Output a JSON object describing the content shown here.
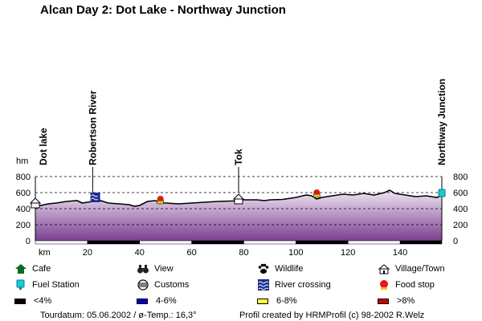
{
  "title": "Alcan Day 2: Dot Lake - Northway Junction",
  "axis": {
    "y_unit_left": "hm",
    "x_unit": "km"
  },
  "waypoints": [
    {
      "name": "Dot lake",
      "km": 0
    },
    {
      "name": "Robertson River",
      "km": 22
    },
    {
      "name": "Tok",
      "km": 78
    },
    {
      "name": "Northway Junction",
      "km": 156
    }
  ],
  "legend": {
    "cafe": "Cafe",
    "view": "View",
    "wildlife": "Wildlife",
    "village": "Village/Town",
    "fuel": "Fuel Station",
    "customs": "Customs",
    "river": "River crossing",
    "food": "Food stop",
    "g1": "<4%",
    "g2": "4-6%",
    "g3": "6-8%",
    "g4": ">8%"
  },
  "footer": {
    "left": "Tourdatum: 05.06.2002  /  ø-Temp.: 16,3°",
    "right": "Profil created by HRMProfil (c) 98-2002 R.Welz"
  },
  "colors": {
    "gradient_top": "#f0e6f4",
    "gradient_bottom": "#7a3f8f",
    "grade_lt4": "#000000",
    "grade_4_6": "#0000cc",
    "grade_6_8": "#ffff33",
    "grade_gt8": "#cc0000"
  },
  "chart_data": {
    "type": "area",
    "xlabel": "km",
    "ylabel": "hm",
    "xlim": [
      0,
      156
    ],
    "ylim": [
      0,
      800
    ],
    "x_ticks": [
      20,
      40,
      60,
      80,
      100,
      120,
      140
    ],
    "y_ticks": [
      0,
      200,
      400,
      600,
      800
    ],
    "grid": "dashed horizontal",
    "series": [
      {
        "x": [
          0,
          2,
          5,
          8,
          12,
          16,
          18,
          20,
          22,
          25,
          28,
          32,
          36,
          38,
          40,
          43,
          46,
          48,
          50,
          55,
          60,
          65,
          70,
          75,
          78,
          80,
          85,
          88,
          90,
          95,
          100,
          104,
          106,
          108,
          110,
          114,
          118,
          122,
          126,
          130,
          134,
          136,
          138,
          142,
          146,
          150,
          154,
          156
        ],
        "values": [
          430,
          440,
          460,
          470,
          490,
          500,
          470,
          480,
          490,
          500,
          470,
          460,
          450,
          430,
          440,
          490,
          500,
          480,
          470,
          460,
          470,
          480,
          490,
          495,
          500,
          510,
          510,
          500,
          510,
          515,
          540,
          570,
          560,
          520,
          540,
          560,
          580,
          570,
          590,
          570,
          600,
          630,
          590,
          570,
          550,
          560,
          540,
          560
        ]
      }
    ],
    "markers": [
      {
        "type": "village",
        "km": 0,
        "alt": 470
      },
      {
        "type": "river",
        "km": 23,
        "alt": 540
      },
      {
        "type": "food",
        "km": 48,
        "alt": 520
      },
      {
        "type": "customs",
        "km": 48,
        "alt": 480
      },
      {
        "type": "village",
        "km": 78,
        "alt": 520
      },
      {
        "type": "food",
        "km": 108,
        "alt": 600
      },
      {
        "type": "customs",
        "km": 108,
        "alt": 560
      },
      {
        "type": "fuel",
        "km": 156,
        "alt": 590
      }
    ],
    "grade_bar": [
      {
        "from": 0,
        "to": 20,
        "grade": "<4%"
      },
      {
        "from": 20,
        "to": 40,
        "grade": "<4%"
      },
      {
        "from": 40,
        "to": 60,
        "grade": "<4%"
      },
      {
        "from": 60,
        "to": 80,
        "grade": "<4%"
      },
      {
        "from": 80,
        "to": 100,
        "grade": "<4%"
      },
      {
        "from": 100,
        "to": 120,
        "grade": "<4%"
      },
      {
        "from": 120,
        "to": 140,
        "grade": "<4%"
      },
      {
        "from": 140,
        "to": 156,
        "grade": "<4%"
      }
    ]
  }
}
